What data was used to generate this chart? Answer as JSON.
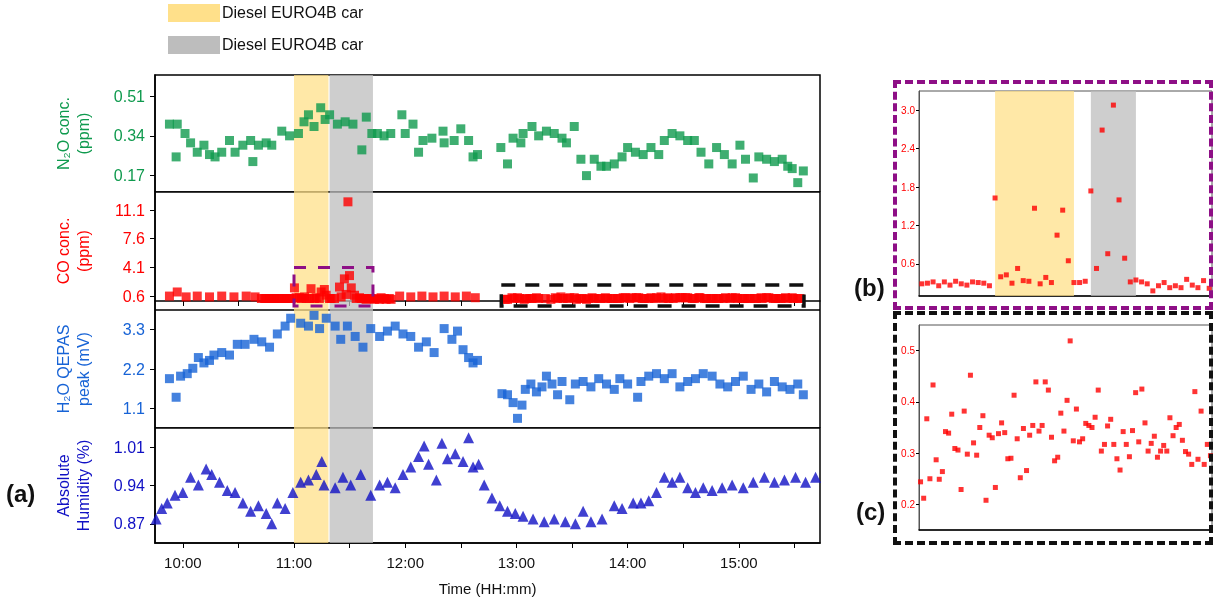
{
  "chart_data": [
    {
      "type": "scatter",
      "ylabel": "N₂O conc.\n(ppm)",
      "color": "#0f9a4e",
      "marker": "square",
      "tick_labels": "y",
      "x": [
        9.88,
        9.95,
        9.94,
        10.02,
        10.07,
        10.13,
        10.19,
        10.24,
        10.29,
        10.35,
        10.42,
        10.47,
        10.54,
        10.61,
        10.63,
        10.68,
        10.75,
        10.8,
        10.89,
        10.96,
        11.04,
        11.09,
        11.13,
        11.18,
        11.24,
        11.28,
        11.32,
        11.39,
        11.46,
        11.53,
        11.61,
        11.65,
        11.7,
        11.75,
        11.81,
        11.87,
        11.97,
        12.0,
        12.07,
        12.12,
        12.16,
        12.24,
        12.34,
        12.35,
        12.44,
        12.5,
        12.57,
        12.61,
        12.65,
        12.86,
        12.92,
        12.97,
        13.04,
        13.06,
        13.14,
        13.2,
        13.27,
        13.34,
        13.41,
        13.45,
        13.52,
        13.58,
        13.63,
        13.7,
        13.76,
        13.81,
        13.88,
        13.95,
        14.0,
        14.07,
        14.14,
        14.21,
        14.28,
        14.33,
        14.4,
        14.47,
        14.54,
        14.6,
        14.66,
        14.73,
        14.8,
        14.87,
        14.94,
        15.01,
        15.06,
        15.13,
        15.18,
        15.25,
        15.32,
        15.39,
        15.44,
        15.48,
        15.53,
        15.58
      ],
      "values": [
        0.39,
        0.39,
        0.25,
        0.35,
        0.31,
        0.27,
        0.3,
        0.26,
        0.25,
        0.27,
        0.32,
        0.27,
        0.3,
        0.32,
        0.23,
        0.3,
        0.31,
        0.3,
        0.36,
        0.34,
        0.35,
        0.4,
        0.43,
        0.38,
        0.46,
        0.41,
        0.43,
        0.39,
        0.4,
        0.39,
        0.28,
        0.42,
        0.35,
        0.35,
        0.34,
        0.35,
        0.43,
        0.35,
        0.39,
        0.27,
        0.32,
        0.33,
        0.36,
        0.31,
        0.32,
        0.37,
        0.32,
        0.25,
        0.26,
        0.29,
        0.22,
        0.33,
        0.31,
        0.35,
        0.38,
        0.34,
        0.36,
        0.35,
        0.33,
        0.31,
        0.38,
        0.24,
        0.17,
        0.24,
        0.21,
        0.21,
        0.22,
        0.25,
        0.29,
        0.27,
        0.26,
        0.29,
        0.26,
        0.32,
        0.35,
        0.34,
        0.32,
        0.32,
        0.27,
        0.22,
        0.29,
        0.26,
        0.22,
        0.3,
        0.24,
        0.16,
        0.25,
        0.24,
        0.23,
        0.24,
        0.21,
        0.2,
        0.14,
        0.19
      ],
      "xlim": [
        9.75,
        15.73
      ],
      "xticks": [
        {
          "value": 10,
          "label": null
        },
        {
          "value": 10.5,
          "label": null
        },
        {
          "value": 11,
          "label": null
        },
        {
          "value": 11.5,
          "label": null
        },
        {
          "value": 12,
          "label": null
        },
        {
          "value": 12.5,
          "label": null
        },
        {
          "value": 13,
          "label": null
        },
        {
          "value": 13.5,
          "label": null
        },
        {
          "value": 14,
          "label": null
        },
        {
          "value": 14.5,
          "label": null
        },
        {
          "value": 15,
          "label": null
        },
        {
          "value": 15.5,
          "label": null
        }
      ],
      "ylim": [
        0.1,
        0.6
      ],
      "yticks": [
        0.17,
        0.34,
        0.51
      ],
      "bands": [
        {
          "axis": "x",
          "from": 11.0,
          "to": 11.31,
          "label": "Diesel EURO4B car",
          "color": "#ffe08a"
        },
        {
          "axis": "x",
          "from": 11.32,
          "to": 11.71,
          "label": "Diesel EURO4B car",
          "color": "#bdbdbd"
        }
      ]
    },
    {
      "type": "scatter",
      "ylabel": "CO conc.\n(ppm)",
      "color": "#ff0000",
      "marker": "square",
      "tick_labels": "y",
      "x": [
        9.88,
        9.95,
        10.03,
        10.13,
        10.24,
        10.35,
        10.46,
        10.57,
        10.65,
        10.707,
        10.736,
        10.748,
        10.78,
        10.795,
        10.824,
        10.84,
        10.868,
        10.885,
        10.915,
        10.929,
        10.959,
        10.975,
        11.004,
        11.019,
        11.048,
        11.065,
        11.095,
        11.109,
        11.139,
        11.153,
        11.184,
        11.199,
        11.228,
        11.244,
        11.273,
        11.289,
        11.319,
        11.333,
        11.364,
        11.409,
        11.424,
        11.453,
        11.469,
        11.485,
        11.499,
        11.515,
        11.544,
        11.559,
        11.589,
        11.604,
        11.633,
        11.648,
        11.677,
        11.692,
        11.723,
        11.737,
        11.768,
        11.783,
        11.812,
        11.828,
        11.857,
        11.873,
        11.95,
        12.05,
        12.15,
        12.25,
        12.35,
        12.45,
        12.55,
        12.63,
        12.9,
        12.92,
        12.96,
        12.98,
        13.01,
        13.03,
        13.07,
        13.09,
        13.12,
        13.14,
        13.18,
        13.2,
        13.26,
        13.31,
        13.35,
        13.37,
        13.4,
        13.42,
        13.46,
        13.48,
        13.52,
        13.54,
        13.57,
        13.59,
        13.63,
        13.65,
        13.68,
        13.7,
        13.74,
        13.76,
        13.8,
        13.82,
        13.85,
        13.87,
        13.91,
        13.93,
        13.96,
        13.98,
        14.02,
        14.04,
        14.08,
        14.1,
        14.13,
        14.15,
        14.19,
        14.21,
        14.24,
        14.26,
        14.3,
        14.32,
        14.36,
        14.37,
        14.41,
        14.43,
        14.47,
        14.49,
        14.52,
        14.54,
        14.58,
        14.6,
        14.64,
        14.65,
        14.69,
        14.71,
        14.75,
        14.77,
        14.8,
        14.82,
        14.86,
        14.88,
        14.92,
        14.94,
        14.97,
        14.99,
        15.03,
        15.05,
        15.08,
        15.1,
        15.14,
        15.16,
        15.2,
        15.21,
        15.25,
        15.27,
        15.31,
        15.33,
        15.36,
        15.38,
        15.42,
        15.44,
        15.48,
        15.49,
        15.53,
        15.55
      ],
      "values": [
        0.6,
        1.1,
        0.5,
        0.6,
        0.5,
        0.6,
        0.5,
        0.6,
        0.5,
        0.3,
        0.3,
        0.3,
        0.3,
        0.3,
        0.3,
        0.3,
        0.3,
        0.3,
        0.3,
        0.3,
        0.3,
        0.3,
        1.6,
        0.4,
        0.4,
        0.3,
        0.5,
        0.3,
        0.3,
        1.5,
        0.3,
        0.4,
        0.3,
        1.1,
        1.4,
        0.7,
        0.3,
        0.3,
        0.3,
        1.7,
        0.5,
        2.7,
        0.8,
        12.1,
        3.1,
        1.6,
        0.7,
        0.3,
        0.4,
        0.3,
        0.3,
        0.2,
        0.3,
        0.3,
        0.2,
        0.3,
        0.2,
        0.4,
        0.3,
        0.2,
        0.3,
        0.2,
        0.6,
        0.5,
        0.6,
        0.5,
        0.6,
        0.5,
        0.6,
        0.4,
        0.2,
        0.2,
        0.4,
        0.3,
        0.4,
        0.3,
        0.2,
        0.3,
        0.3,
        0.3,
        0.4,
        0.3,
        0.3,
        0.2,
        0.4,
        0.3,
        0.5,
        0.3,
        0.3,
        0.4,
        0.4,
        0.2,
        0.3,
        0.3,
        0.2,
        0.3,
        0.4,
        0.3,
        0.3,
        0.3,
        0.4,
        0.3,
        0.3,
        0.3,
        0.3,
        0.3,
        0.4,
        0.4,
        0.3,
        0.4,
        0.4,
        0.4,
        0.3,
        0.3,
        0.3,
        0.4,
        0.3,
        0.4,
        0.5,
        0.3,
        0.4,
        0.3,
        0.3,
        0.4,
        0.4,
        0.4,
        0.4,
        0.4,
        0.3,
        0.3,
        0.4,
        0.4,
        0.3,
        0.3,
        0.3,
        0.3,
        0.3,
        0.3,
        0.3,
        0.4,
        0.3,
        0.4,
        0.4,
        0.3,
        0.3,
        0.3,
        0.3,
        0.3,
        0.3,
        0.3,
        0.4,
        0.3,
        0.4,
        0.4,
        0.3,
        0.3,
        0.3,
        0.3,
        0.4,
        0.3,
        0.4,
        0.3,
        0.3,
        0.3
      ],
      "xlim": [
        9.75,
        15.73
      ],
      "xticks": [
        {
          "value": 10,
          "label": null
        },
        {
          "value": 10.5,
          "label": null
        },
        {
          "value": 11,
          "label": null
        },
        {
          "value": 11.5,
          "label": null
        },
        {
          "value": 12,
          "label": null
        },
        {
          "value": 12.5,
          "label": null
        },
        {
          "value": 13,
          "label": null
        },
        {
          "value": 13.5,
          "label": null
        },
        {
          "value": 14,
          "label": null
        },
        {
          "value": 14.5,
          "label": null
        },
        {
          "value": 15,
          "label": null
        },
        {
          "value": 15.5,
          "label": null
        }
      ],
      "ylim": [
        -1.1,
        13.3
      ],
      "yticks": [
        0.6,
        4.1,
        7.6,
        11.1
      ],
      "bands": [
        {
          "axis": "x",
          "from": 11.0,
          "to": 11.31,
          "color": "#ffe08a"
        },
        {
          "axis": "x",
          "from": 11.32,
          "to": 11.71,
          "color": "#bdbdbd"
        }
      ]
    },
    {
      "type": "scatter",
      "ylabel": "H₂O QEPAS\npeak (mV)",
      "color": "#1763d6",
      "marker": "square",
      "tick_labels": "y",
      "x": [
        9.88,
        9.94,
        9.98,
        10.04,
        10.09,
        10.14,
        10.19,
        10.24,
        10.28,
        10.35,
        10.42,
        10.49,
        10.56,
        10.64,
        10.71,
        10.78,
        10.85,
        10.92,
        10.97,
        11.06,
        11.13,
        11.18,
        11.23,
        11.29,
        11.37,
        11.42,
        11.48,
        11.55,
        11.62,
        11.69,
        11.77,
        11.84,
        11.91,
        11.98,
        12.05,
        12.12,
        12.19,
        12.26,
        12.35,
        12.42,
        12.47,
        12.52,
        12.57,
        12.61,
        12.65,
        12.87,
        12.92,
        12.97,
        13.01,
        13.05,
        13.08,
        13.13,
        13.18,
        13.23,
        13.27,
        13.32,
        13.37,
        13.41,
        13.48,
        13.53,
        13.6,
        13.67,
        13.74,
        13.81,
        13.88,
        13.93,
        14.0,
        14.09,
        14.12,
        14.19,
        14.26,
        14.33,
        14.4,
        14.47,
        14.54,
        14.61,
        14.68,
        14.76,
        14.83,
        14.9,
        14.97,
        15.04,
        15.11,
        15.18,
        15.25,
        15.32,
        15.39,
        15.46,
        15.53,
        15.58
      ],
      "values": [
        1.93,
        1.41,
        2.0,
        2.07,
        2.22,
        2.52,
        2.37,
        2.44,
        2.59,
        2.66,
        2.59,
        2.89,
        2.89,
        3.03,
        2.96,
        2.81,
        3.18,
        3.4,
        3.62,
        3.48,
        3.4,
        3.7,
        3.33,
        3.62,
        3.4,
        3.03,
        3.4,
        3.11,
        2.81,
        3.33,
        3.11,
        3.26,
        3.4,
        3.18,
        3.11,
        2.81,
        2.96,
        2.66,
        3.33,
        3.03,
        3.26,
        2.74,
        2.52,
        2.37,
        2.44,
        1.51,
        1.48,
        1.26,
        0.82,
        1.19,
        1.63,
        1.78,
        1.56,
        1.7,
        2.0,
        1.78,
        1.48,
        1.85,
        1.34,
        1.78,
        1.85,
        1.7,
        1.93,
        1.78,
        1.63,
        1.93,
        1.78,
        1.41,
        1.85,
        2.0,
        2.07,
        1.93,
        2.07,
        1.7,
        1.85,
        1.93,
        2.07,
        2.0,
        1.78,
        1.7,
        1.85,
        2.0,
        1.63,
        1.78,
        1.56,
        1.85,
        1.7,
        1.63,
        1.78,
        1.48
      ],
      "xlim": [
        9.75,
        15.73
      ],
      "xticks": [
        {
          "value": 10,
          "label": null
        },
        {
          "value": 10.5,
          "label": null
        },
        {
          "value": 11,
          "label": null
        },
        {
          "value": 11.5,
          "label": null
        },
        {
          "value": 12,
          "label": null
        },
        {
          "value": 12.5,
          "label": null
        },
        {
          "value": 13,
          "label": null
        },
        {
          "value": 13.5,
          "label": null
        },
        {
          "value": 14,
          "label": null
        },
        {
          "value": 14.5,
          "label": null
        },
        {
          "value": 15,
          "label": null
        },
        {
          "value": 15.5,
          "label": null
        }
      ],
      "ylim": [
        0.55,
        3.85
      ],
      "yticks": [
        1.1,
        2.2,
        3.3
      ],
      "bands": [
        {
          "axis": "x",
          "from": 11.0,
          "to": 11.31,
          "color": "#ffe08a"
        },
        {
          "axis": "x",
          "from": 11.32,
          "to": 11.71,
          "color": "#bdbdbd"
        }
      ]
    },
    {
      "type": "scatter",
      "ylabel": "Absolute\nHumidity (%)",
      "xlabel": "Time (HH:mm)",
      "color": "#1010c4",
      "marker": "triangle",
      "annotations": [
        "(a)"
      ],
      "x": [
        9.76,
        9.81,
        9.86,
        9.93,
        10.0,
        10.07,
        10.14,
        10.21,
        10.26,
        10.33,
        10.4,
        10.47,
        10.54,
        10.61,
        10.68,
        10.75,
        10.8,
        10.85,
        10.92,
        10.99,
        11.06,
        11.13,
        11.2,
        11.25,
        11.27,
        11.37,
        11.44,
        11.51,
        11.6,
        11.69,
        11.77,
        11.84,
        11.91,
        11.98,
        12.05,
        12.12,
        12.17,
        12.21,
        12.28,
        12.33,
        12.38,
        12.45,
        12.52,
        12.57,
        12.61,
        12.66,
        12.71,
        12.78,
        12.85,
        12.92,
        12.99,
        13.06,
        13.15,
        13.25,
        13.34,
        13.44,
        13.53,
        13.6,
        13.67,
        13.77,
        13.88,
        13.95,
        14.05,
        14.12,
        14.19,
        14.26,
        14.33,
        14.4,
        14.47,
        14.54,
        14.61,
        14.68,
        14.76,
        14.85,
        14.94,
        15.04,
        15.13,
        15.23,
        15.32,
        15.41,
        15.51,
        15.6,
        15.69
      ],
      "values": [
        0.879,
        0.898,
        0.908,
        0.922,
        0.927,
        0.955,
        0.941,
        0.97,
        0.96,
        0.946,
        0.931,
        0.927,
        0.908,
        0.893,
        0.903,
        0.889,
        0.87,
        0.908,
        0.898,
        0.927,
        0.946,
        0.95,
        0.96,
        0.984,
        0.941,
        0.936,
        0.955,
        0.941,
        0.96,
        0.922,
        0.941,
        0.946,
        0.936,
        0.96,
        0.974,
        0.993,
        1.012,
        0.979,
        0.95,
        1.017,
        0.989,
        0.998,
        0.984,
        1.027,
        0.974,
        0.979,
        0.941,
        0.917,
        0.903,
        0.893,
        0.889,
        0.884,
        0.879,
        0.874,
        0.879,
        0.874,
        0.87,
        0.893,
        0.874,
        0.879,
        0.903,
        0.898,
        0.908,
        0.908,
        0.912,
        0.927,
        0.955,
        0.946,
        0.955,
        0.936,
        0.927,
        0.936,
        0.931,
        0.936,
        0.941,
        0.936,
        0.946,
        0.955,
        0.946,
        0.95,
        0.955,
        0.946,
        0.955
      ],
      "xlim": [
        9.75,
        15.73
      ],
      "xticks": [
        {
          "value": 10,
          "label": "10:00"
        },
        {
          "value": 10.5,
          "label": null
        },
        {
          "value": 11,
          "label": "11:00"
        },
        {
          "value": 11.5,
          "label": null
        },
        {
          "value": 12,
          "label": "12:00"
        },
        {
          "value": 12.5,
          "label": null
        },
        {
          "value": 13,
          "label": "13:00"
        },
        {
          "value": 13.5,
          "label": null
        },
        {
          "value": 14,
          "label": "14:00"
        },
        {
          "value": 14.5,
          "label": null
        },
        {
          "value": 15,
          "label": "15:00"
        },
        {
          "value": 15.5,
          "label": null
        }
      ],
      "ylim": [
        0.835,
        1.045
      ],
      "yticks": [
        0.87,
        0.94,
        1.01
      ],
      "bands": [
        {
          "axis": "x",
          "from": 11.0,
          "to": 11.31,
          "color": "#ffe08a"
        },
        {
          "axis": "x",
          "from": 11.32,
          "to": 11.71,
          "color": "#bdbdbd"
        }
      ]
    },
    {
      "type": "scatter",
      "color": "#ff0000",
      "marker": "square",
      "tick_labels": "y",
      "annotations": [
        "(b)"
      ],
      "categories": [
        null,
        null,
        null,
        null,
        null,
        null,
        null,
        null,
        null,
        null,
        null,
        null,
        null,
        null,
        null,
        null,
        null,
        null,
        null,
        null,
        null,
        null,
        null,
        null,
        null,
        null,
        null,
        null,
        null,
        null,
        null,
        null,
        null,
        null,
        null,
        null,
        null,
        null,
        null,
        null,
        null,
        null,
        null,
        null,
        null,
        null,
        null,
        null,
        null,
        null,
        null,
        null
      ],
      "values": [
        0.29,
        0.3,
        0.32,
        0.26,
        0.32,
        0.27,
        0.33,
        0.29,
        0.27,
        0.32,
        0.31,
        0.3,
        0.26,
        1.63,
        0.4,
        0.43,
        0.3,
        0.53,
        0.34,
        0.33,
        1.47,
        0.29,
        0.39,
        0.31,
        1.05,
        1.44,
        0.65,
        0.31,
        0.31,
        0.33,
        1.74,
        0.53,
        2.69,
        0.76,
        3.08,
        1.6,
        0.69,
        0.32,
        0.35,
        0.32,
        0.29,
        0.18,
        0.26,
        0.31,
        0.23,
        0.26,
        0.23,
        0.36,
        0.27,
        0.23,
        0.34,
        0.22
      ],
      "ylim": [
        0.1,
        3.3
      ],
      "yticks": [
        0.6,
        1.2,
        1.8,
        2.4,
        {
          "value": 3,
          "label": "3.0"
        }
      ]
    },
    {
      "type": "scatter",
      "color": "#ff0000",
      "marker": "square",
      "tick_labels": "y",
      "annotations": [
        "(c)"
      ],
      "categories": [
        null,
        null,
        null,
        null,
        null,
        null,
        null,
        null,
        null,
        null,
        null,
        null,
        null,
        null,
        null,
        null,
        null,
        null,
        null,
        null,
        null,
        null,
        null,
        null,
        null,
        null,
        null,
        null,
        null,
        null,
        null,
        null,
        null,
        null,
        null,
        null,
        null,
        null,
        null,
        null,
        null,
        null,
        null,
        null,
        null,
        null,
        null,
        null,
        null,
        null,
        null,
        null,
        null,
        null,
        null,
        null,
        null,
        null,
        null,
        null,
        null,
        null,
        null,
        null,
        null,
        null,
        null,
        null,
        null,
        null,
        null,
        null,
        null,
        null,
        null,
        null,
        null,
        null,
        null,
        null,
        null,
        null,
        null,
        null,
        null,
        null,
        null,
        null,
        null,
        null,
        null,
        null,
        null,
        null
      ],
      "values": [
        0.244,
        0.212,
        0.367,
        0.25,
        0.433,
        0.287,
        0.249,
        0.264,
        0.342,
        0.339,
        0.376,
        0.309,
        0.306,
        0.229,
        0.382,
        0.298,
        0.452,
        0.32,
        0.296,
        0.35,
        0.373,
        0.208,
        0.335,
        0.33,
        0.233,
        0.338,
        0.359,
        0.34,
        0.289,
        0.29,
        0.413,
        0.328,
        0.252,
        0.348,
        0.266,
        0.335,
        0.354,
        0.439,
        0.343,
        0.354,
        0.439,
        0.423,
        0.331,
        0.285,
        0.292,
        0.378,
        0.343,
        0.403,
        0.519,
        0.324,
        0.386,
        0.322,
        0.328,
        0.358,
        0.354,
        0.35,
        0.37,
        0.423,
        0.304,
        0.317,
        0.353,
        0.366,
        0.317,
        0.289,
        0.267,
        0.342,
        0.317,
        0.293,
        0.344,
        0.418,
        0.322,
        0.425,
        0.359,
        0.304,
        0.319,
        0.333,
        0.292,
        0.304,
        0.315,
        0.304,
        0.369,
        0.334,
        0.35,
        0.356,
        0.325,
        0.303,
        0.298,
        0.278,
        0.42,
        0.288,
        0.382,
        0.278,
        0.317,
        0.295
      ],
      "ylim": [
        0.15,
        0.55
      ],
      "yticks": [
        0.2,
        0.3,
        0.4,
        0.5
      ]
    }
  ]
}
